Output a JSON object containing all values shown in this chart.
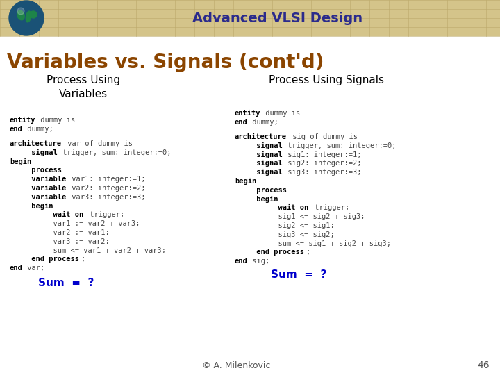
{
  "title_header": "Advanced VLSI Design",
  "slide_title": "Variables vs. Signals (cont'd)",
  "header_bg": "#D4C48A",
  "header_text_color": "#2B2B8C",
  "slide_title_color": "#8B4500",
  "bg_color": "#FFFFFF",
  "col1_header": "Process Using\nVariables",
  "col2_header": "Process Using Signals",
  "col_header_color": "#000000",
  "sum_color": "#0000CC",
  "footer_text": "© A. Milenkovic",
  "footer_num": "46",
  "left_lines": [
    {
      "bold": "entity",
      "normal": " dummy is"
    },
    {
      "bold": "end",
      "normal": " dummy;"
    },
    {
      "bold": "",
      "normal": ""
    },
    {
      "bold": "architecture",
      "normal": " var of dummy "
    },
    {
      "bold2": "is",
      "indent2": 0
    },
    {
      "bold": "     signal",
      "normal": " trigger, sum: integer:=0;"
    },
    {
      "bold": "begin",
      "normal": ""
    },
    {
      "bold": "     process",
      "normal": ""
    },
    {
      "bold": "     variable",
      "normal": " var1: integer:=1;"
    },
    {
      "bold": "     variable",
      "normal": " var2: integer:=2;"
    },
    {
      "bold": "     variable",
      "normal": " var3: integer:=3;"
    },
    {
      "bold": "     begin",
      "normal": ""
    },
    {
      "bold": "          wait on",
      "normal": " trigger;"
    },
    {
      "bold": "",
      "normal": "          var1 := var2 + var3;"
    },
    {
      "bold": "",
      "normal": "          var2 := var1;"
    },
    {
      "bold": "",
      "normal": "          var3 := var2;"
    },
    {
      "bold": "",
      "normal": "          sum <= var1 + var2 + var3;"
    },
    {
      "bold": "     end process",
      "normal": ";"
    },
    {
      "bold": "end",
      "normal": " var;"
    }
  ],
  "right_lines_1": [
    {
      "bold": "entity",
      "normal": " dummy is"
    },
    {
      "bold": "end",
      "normal": " dummy;"
    }
  ],
  "right_lines_2": [
    {
      "bold": "architecture",
      "normal": " sig of dummy "
    },
    {
      "bold2": "is",
      "indent2": 0
    },
    {
      "bold": "     signal",
      "normal": " trigger, sum: integer:=0;"
    },
    {
      "bold": "     signal",
      "normal": " sig1: integer:=1;"
    },
    {
      "bold": "     signal",
      "normal": " sig2: integer:=2;"
    },
    {
      "bold": "     signal",
      "normal": " sig3: integer:=3;"
    },
    {
      "bold": "begin",
      "normal": ""
    },
    {
      "bold": "     process",
      "normal": ""
    },
    {
      "bold": "     begin",
      "normal": ""
    },
    {
      "bold": "          wait on",
      "normal": " trigger;"
    },
    {
      "bold": "",
      "normal": "          sig1 <= sig2 + sig3;"
    },
    {
      "bold": "",
      "normal": "          sig2 <= sig1;"
    },
    {
      "bold": "",
      "normal": "          sig3 <= sig2;"
    },
    {
      "bold": "",
      "normal": "          sum <= sig1 + sig2 + sig3;"
    },
    {
      "bold": "     end process",
      "normal": ";"
    },
    {
      "bold": "end",
      "normal": " sig;"
    }
  ]
}
